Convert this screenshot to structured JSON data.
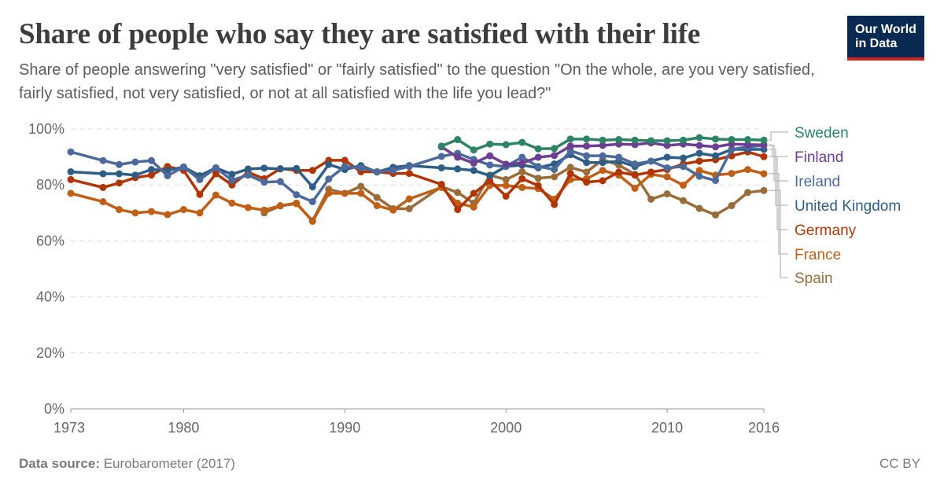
{
  "header": {
    "title": "Share of people who say they are satisfied with their life",
    "subtitle": "Share of people answering \"very satisfied\" or \"fairly satisfied\" to the question \"On the whole, are you very satisfied, fairly satisfied, not very satisfied, or not at all satisfied with the life you lead?\""
  },
  "logo": {
    "line1": "Our World",
    "line2": "in Data"
  },
  "footer": {
    "source_label": "Data source:",
    "source": "Eurobarometer (2017)",
    "license": "CC BY"
  },
  "chart_data": {
    "type": "line",
    "title": "Share of people who say they are satisfied with their life",
    "xlim": [
      1973,
      2016
    ],
    "ylim": [
      0,
      100
    ],
    "x_ticks": [
      "1973",
      "1980",
      "1990",
      "2000",
      "2010",
      "2016"
    ],
    "y_ticks": [
      "0%",
      "20%",
      "40%",
      "60%",
      "80%",
      "100%"
    ],
    "grid": "horizontal dashed",
    "legend": "right (line end labels)",
    "years": [
      1973,
      1975,
      1976,
      1977,
      1978,
      1979,
      1980,
      1981,
      1982,
      1983,
      1984,
      1985,
      1986,
      1987,
      1988,
      1989,
      1990,
      1991,
      1992,
      1993,
      1994,
      1996,
      1997,
      1998,
      1999,
      2000,
      2001,
      2002,
      2003,
      2004,
      2005,
      2006,
      2007,
      2008,
      2009,
      2010,
      2011,
      2012,
      2013,
      2014,
      2015,
      2016
    ],
    "series": [
      {
        "name": "Sweden",
        "color": "#2c8465",
        "values": [
          null,
          null,
          null,
          null,
          null,
          null,
          null,
          null,
          null,
          null,
          null,
          null,
          null,
          null,
          null,
          null,
          null,
          null,
          null,
          null,
          null,
          93.9,
          96.2,
          92.5,
          94.6,
          94.4,
          95.2,
          92.9,
          93,
          96.4,
          96.4,
          96,
          96.2,
          96,
          95.8,
          95.8,
          96,
          96.9,
          96.4,
          96.2,
          96.2,
          96
        ]
      },
      {
        "name": "Finland",
        "color": "#6d3e91",
        "values": [
          null,
          null,
          null,
          null,
          null,
          null,
          null,
          null,
          null,
          null,
          null,
          null,
          null,
          null,
          null,
          null,
          null,
          null,
          null,
          null,
          null,
          93.6,
          89.9,
          87.8,
          90.4,
          87.4,
          87.8,
          89.9,
          90.5,
          93.9,
          93.9,
          94.1,
          94.6,
          94.4,
          95,
          94.1,
          94.6,
          94.1,
          93.6,
          94.6,
          94.4,
          94.3
        ]
      },
      {
        "name": "Ireland",
        "color": "#4c6a9c",
        "values": [
          91.8,
          88.7,
          87.3,
          88.2,
          88.7,
          83.3,
          86.4,
          81.9,
          86.1,
          81.7,
          83.5,
          81,
          81.2,
          76.5,
          74,
          82.1,
          86.6,
          86.1,
          84.7,
          85.2,
          86.6,
          90.2,
          91.3,
          89.1,
          87.1,
          86.6,
          89.9,
          86.6,
          85.5,
          92.2,
          90.4,
          90.4,
          89.9,
          87.5,
          88.5,
          86.1,
          86.6,
          83.1,
          81.6,
          92.7,
          93.6,
          94.1
        ]
      },
      {
        "name": "United Kingdom",
        "color": "#2e5e86",
        "values": [
          84.7,
          84,
          84,
          83.5,
          85.5,
          85.2,
          86.4,
          83.3,
          86.1,
          83.8,
          85.7,
          86,
          85.7,
          85.9,
          79.3,
          87.3,
          85.5,
          86.9,
          84.6,
          86.3,
          86.9,
          86.1,
          85.7,
          85.2,
          83.3,
          86.6,
          87.1,
          86.1,
          87.5,
          90.8,
          88,
          88,
          88.5,
          86.6,
          88.5,
          89.9,
          89.6,
          91.3,
          90.4,
          92.7,
          92.7,
          92.7
        ]
      },
      {
        "name": "Germany",
        "color": "#b13507",
        "values": [
          81.9,
          79.1,
          80.7,
          82.6,
          83.5,
          86.6,
          85.2,
          76.6,
          84,
          80,
          84.5,
          82.2,
          85.8,
          85.2,
          85.2,
          88.8,
          88.8,
          84.7,
          84.7,
          84.1,
          84.1,
          80.2,
          71.2,
          77,
          81.5,
          76,
          82.2,
          79.8,
          73,
          84.1,
          81,
          81.5,
          84.6,
          83.5,
          84.6,
          85.5,
          87.5,
          88.5,
          89,
          90.4,
          91.8,
          90.1
        ]
      },
      {
        "name": "France",
        "color": "#c05f17",
        "values": [
          77,
          74,
          71.2,
          70,
          70.5,
          69.4,
          71.2,
          70,
          76.4,
          73.5,
          71.9,
          71,
          72.6,
          73.5,
          67,
          77,
          77,
          77,
          72.6,
          71,
          75,
          79.1,
          73.5,
          72.1,
          79.8,
          79.8,
          79.1,
          78.7,
          74.9,
          81.9,
          82.2,
          85.2,
          83.5,
          78.8,
          83.8,
          82.9,
          79.9,
          85.2,
          83.5,
          84.1,
          85.5,
          84
        ]
      },
      {
        "name": "Spain",
        "color": "#996d39",
        "values": [
          null,
          null,
          null,
          null,
          null,
          null,
          null,
          null,
          null,
          null,
          null,
          70,
          72.5,
          73.3,
          67.2,
          78.5,
          77,
          79.5,
          75.5,
          71.5,
          71.5,
          79.4,
          77.3,
          73.5,
          83.5,
          81.9,
          84.7,
          82.4,
          82.9,
          86.3,
          84.6,
          89,
          87.1,
          83.8,
          74.9,
          76.8,
          74.4,
          71.6,
          69.3,
          72.6,
          77.3,
          78
        ]
      }
    ]
  }
}
